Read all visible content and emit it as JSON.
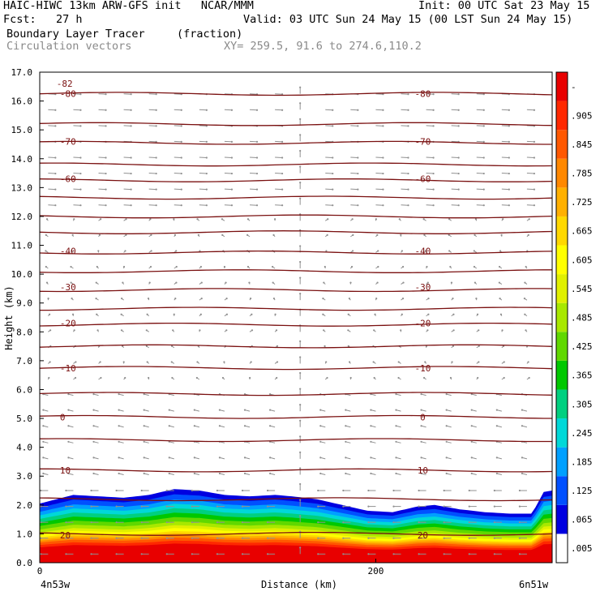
{
  "header": {
    "model": "HAIC-HIWC 13km ARW-GFS init   NCAR/MMM",
    "init": "Init: 00 UTC Sat 23 May 15",
    "fcst": "Fcst:   27 h",
    "valid": "Valid: 03 UTC Sun 24 May 15 (00 LST Sun 24 May 15)",
    "field": "Boundary Layer Tracer",
    "field_units": "(fraction)",
    "overlay": "Circulation vectors",
    "xy": "XY= 259.5, 91.6 to 274.6,110.2"
  },
  "chart_data": {
    "type": "heatmap",
    "title": "Boundary Layer Tracer",
    "units": "(fraction)",
    "ylabel": "Height (km)",
    "xlabel": "Distance (km)",
    "xlim": [
      0,
      305
    ],
    "ylim": [
      0,
      17
    ],
    "x_ticks": [
      "0",
      "200"
    ],
    "x_tick_values": [
      0,
      200
    ],
    "x_end_labels": {
      "left": "4n53w",
      "right": "6n51w"
    },
    "y_ticks": [
      "0.0",
      "1.0",
      "2.0",
      "3.0",
      "4.0",
      "5.0",
      "6.0",
      "7.0",
      "8.0",
      "9.0",
      "10.0",
      "11.0",
      "12.0",
      "13.0",
      "14.0",
      "15.0",
      "16.0",
      "17.0"
    ],
    "colorbar": {
      "labels": [
        ".005",
        ".065",
        ".125",
        ".185",
        ".245",
        ".305",
        ".365",
        ".425",
        ".485",
        ".545",
        ".605",
        ".665",
        ".725",
        ".785",
        ".845",
        ".905",
        "-"
      ],
      "colors": [
        "#ffffff",
        "#0000e0",
        "#0050ff",
        "#00a0ff",
        "#00d8d8",
        "#00d080",
        "#00c800",
        "#60d800",
        "#a8e800",
        "#e0f000",
        "#ffff00",
        "#ffd800",
        "#ffb000",
        "#ff8800",
        "#ff5800",
        "#ff2800",
        "#e80000"
      ]
    },
    "tracer_top_km": [
      [
        0,
        2.05
      ],
      [
        10,
        2.2
      ],
      [
        20,
        2.35
      ],
      [
        35,
        2.3
      ],
      [
        50,
        2.25
      ],
      [
        65,
        2.35
      ],
      [
        80,
        2.55
      ],
      [
        95,
        2.5
      ],
      [
        110,
        2.35
      ],
      [
        125,
        2.3
      ],
      [
        140,
        2.35
      ],
      [
        150,
        2.3
      ],
      [
        165,
        2.2
      ],
      [
        180,
        2.0
      ],
      [
        195,
        1.8
      ],
      [
        210,
        1.75
      ],
      [
        225,
        1.95
      ],
      [
        235,
        2.0
      ],
      [
        250,
        1.85
      ],
      [
        265,
        1.75
      ],
      [
        280,
        1.7
      ],
      [
        293,
        1.7
      ],
      [
        300,
        2.45
      ],
      [
        305,
        2.5
      ]
    ],
    "isotherm_labels": [
      {
        "value": "-82",
        "y": 16.6
      },
      {
        "value": "-80",
        "y": 16.25
      },
      {
        "value": "-70",
        "y": 14.6
      },
      {
        "value": "-60",
        "y": 13.3
      },
      {
        "value": "-40",
        "y": 10.8
      },
      {
        "value": "-30",
        "y": 9.55
      },
      {
        "value": "-20",
        "y": 8.3
      },
      {
        "value": "-10",
        "y": 6.75
      },
      {
        "value": "0",
        "y": 5.05
      },
      {
        "value": "10",
        "y": 3.2
      },
      {
        "value": "20",
        "y": 0.95
      }
    ],
    "isotherm_heights_km": [
      16.25,
      15.2,
      14.55,
      13.8,
      13.25,
      12.65,
      12.0,
      11.45,
      10.75,
      10.1,
      9.45,
      8.8,
      8.25,
      7.5,
      6.75,
      5.85,
      5.05,
      4.25,
      3.2,
      2.2,
      1.0
    ],
    "vectors": "grey wind arrows over the domain (circulation vectors)"
  }
}
